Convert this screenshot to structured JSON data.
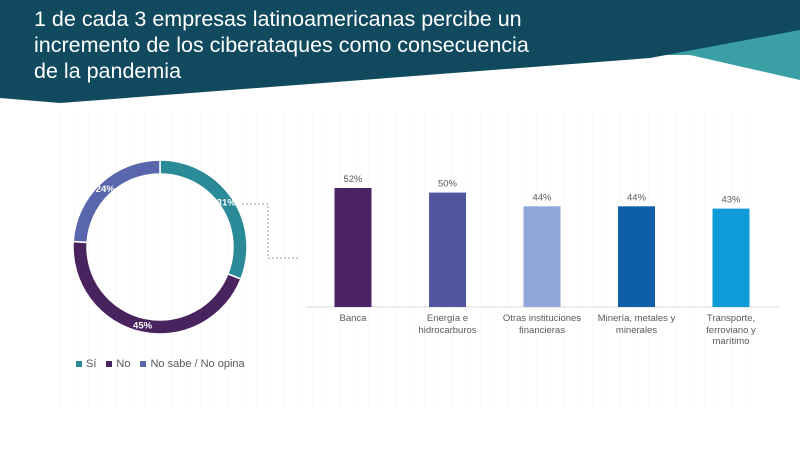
{
  "title_lines": [
    "1 de cada 3 empresas latinoamericanas percibe un",
    "incremento de los ciberataques como consecuencia",
    "de la pandemia"
  ],
  "colors": {
    "banner_dark": "#114a5e",
    "banner_teal": "#3aa0a6",
    "si": "#2a8a98",
    "no": "#48235e",
    "no_sabe": "#5966ac"
  },
  "chart_data": [
    {
      "type": "pie",
      "variant": "donut",
      "slices": [
        {
          "label": "Sí",
          "value": 31,
          "display": "31%",
          "color": "#2a8a98"
        },
        {
          "label": "No",
          "value": 45,
          "display": "45%",
          "color": "#48235e"
        },
        {
          "label": "No sabe / No opina",
          "value": 24,
          "display": "24%",
          "color": "#5966ac"
        }
      ],
      "legend_position": "bottom-left"
    },
    {
      "type": "bar",
      "categories": [
        "Banca",
        "Energía e hidrocarburos",
        "Otras instituciones financieras",
        "Minería, metales y minerales",
        "Transporte, ferroviano y marítimo"
      ],
      "category_lines": [
        [
          "Banca"
        ],
        [
          "Energía e",
          "hidrocarburos"
        ],
        [
          "Otras instituciones",
          "financieras"
        ],
        [
          "Minería, metales y",
          "minerales"
        ],
        [
          "Transporte,",
          "ferroviano y",
          "marítimo"
        ]
      ],
      "values": [
        52,
        50,
        44,
        44,
        43
      ],
      "labels": [
        "52%",
        "50%",
        "44%",
        "44%",
        "43%"
      ],
      "colors": [
        "#4c2266",
        "#5156a0",
        "#8ea6da",
        "#0e5fa8",
        "#0f9bd7"
      ],
      "ylim": [
        0,
        52
      ],
      "grid": false
    }
  ]
}
